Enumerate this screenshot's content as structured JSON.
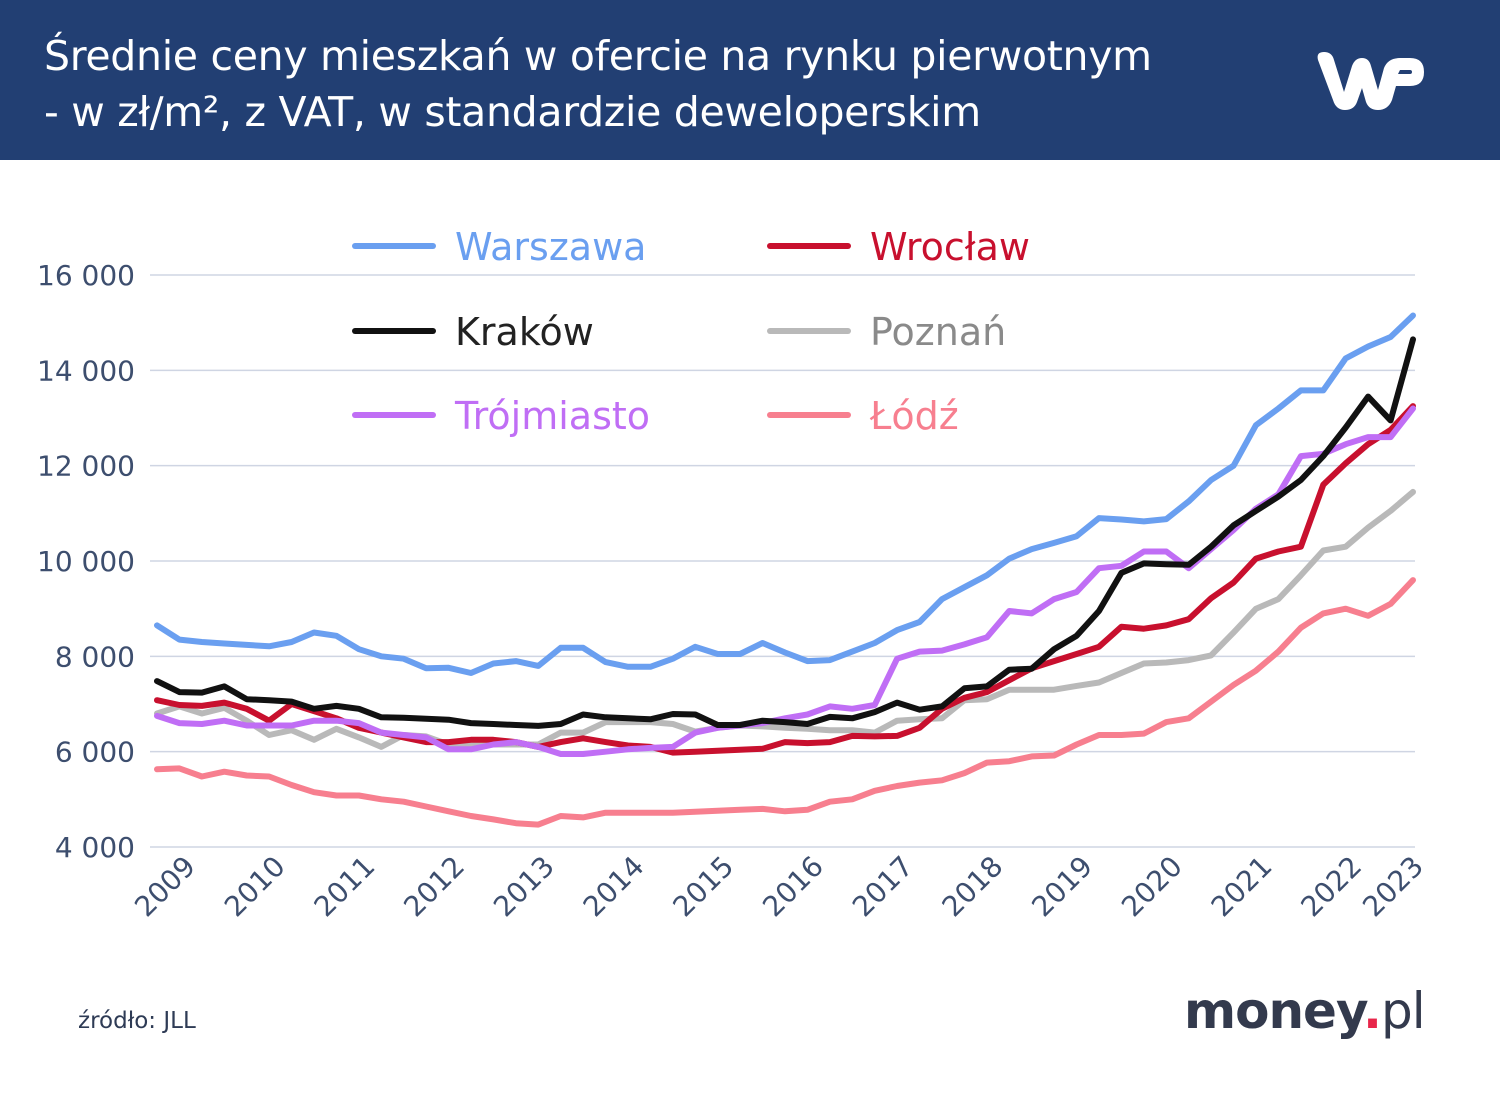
{
  "header": {
    "title_line1": "Średnie ceny mieszkań w ofercie na rynku pierwotnym",
    "title_line2": "- w zł/m², z VAT, w standardzie deweloperskim",
    "logo": "WP",
    "background": "#223f73"
  },
  "footer": {
    "source": "źródło: JLL",
    "brand_name": "money",
    "brand_dot": ".",
    "brand_tld": "pl"
  },
  "chart_data": {
    "type": "line",
    "title": "Średnie ceny mieszkań w ofercie na rynku pierwotnym - w zł/m², z VAT, w standardzie deweloperskim",
    "xlabel": "",
    "ylabel": "",
    "x_frequency": "quarterly",
    "x_range": [
      "2009 Q1",
      "2023 Q1"
    ],
    "x_tick_labels": [
      "2009",
      "2010",
      "2011",
      "2012",
      "2013",
      "2014",
      "2015",
      "2016",
      "2017",
      "2018",
      "2019",
      "2020",
      "2021",
      "2022",
      "2023"
    ],
    "y_ticks": [
      4000,
      6000,
      8000,
      10000,
      12000,
      14000,
      16000
    ],
    "y_tick_labels": [
      "4 000",
      "6 000",
      "8 000",
      "10 000",
      "12 000",
      "14 000",
      "16 000"
    ],
    "ylim": [
      4000,
      16000
    ],
    "grid": "horizontal",
    "legend_placement": "top",
    "series": [
      {
        "name": "Warszawa",
        "color": "#6a9ff0",
        "values": [
          8650,
          8350,
          8300,
          8270,
          8240,
          8210,
          8300,
          8500,
          8430,
          8150,
          8000,
          7950,
          7750,
          7760,
          7650,
          7850,
          7900,
          7800,
          8180,
          8180,
          7880,
          7780,
          7780,
          7950,
          8200,
          8050,
          8050,
          8280,
          8080,
          7900,
          7920,
          8100,
          8280,
          8550,
          8720,
          9200,
          9450,
          9700,
          10050,
          10250,
          10380,
          10520,
          10900,
          10870,
          10830,
          10880,
          11250,
          11700,
          12000,
          12850,
          13200,
          13580,
          13580,
          14250,
          14500,
          14700,
          15150
        ]
      },
      {
        "name": "Wrocław",
        "color": "#c8102e",
        "values": [
          7080,
          6980,
          6960,
          7030,
          6900,
          6650,
          7000,
          6850,
          6700,
          6500,
          6400,
          6300,
          6200,
          6200,
          6250,
          6250,
          6200,
          6100,
          6200,
          6280,
          6200,
          6130,
          6100,
          5980,
          6000,
          6020,
          6040,
          6060,
          6200,
          6180,
          6200,
          6330,
          6320,
          6330,
          6500,
          6900,
          7130,
          7250,
          7500,
          7750,
          7900,
          8050,
          8200,
          8620,
          8580,
          8650,
          8780,
          9220,
          9550,
          10050,
          10200,
          10300,
          11600,
          12050,
          12450,
          12750,
          13250
        ]
      },
      {
        "name": "Kraków",
        "color": "#111111",
        "values": [
          7480,
          7250,
          7240,
          7370,
          7100,
          7080,
          7050,
          6900,
          6960,
          6900,
          6720,
          6710,
          6690,
          6670,
          6600,
          6580,
          6560,
          6540,
          6580,
          6780,
          6720,
          6700,
          6680,
          6790,
          6780,
          6560,
          6560,
          6650,
          6620,
          6580,
          6730,
          6700,
          6830,
          7030,
          6880,
          6950,
          7330,
          7370,
          7720,
          7740,
          8150,
          8430,
          8950,
          9750,
          9950,
          9930,
          9920,
          10300,
          10750,
          11050,
          11350,
          11700,
          12200,
          12800,
          13450,
          12950,
          14650
        ]
      },
      {
        "name": "Poznań",
        "color": "#b9b9b9",
        "values": [
          6800,
          6950,
          6800,
          6920,
          6650,
          6350,
          6450,
          6250,
          6480,
          6300,
          6100,
          6350,
          6320,
          6150,
          6150,
          6150,
          6150,
          6150,
          6400,
          6400,
          6620,
          6620,
          6620,
          6580,
          6420,
          6500,
          6550,
          6530,
          6500,
          6480,
          6450,
          6450,
          6400,
          6650,
          6680,
          6700,
          7080,
          7100,
          7300,
          7300,
          7300,
          7380,
          7450,
          7650,
          7850,
          7870,
          7920,
          8020,
          8500,
          9000,
          9200,
          9700,
          10220,
          10300,
          10700,
          11050,
          11450
        ]
      },
      {
        "name": "Trójmiasto",
        "color": "#c06ef5",
        "values": [
          6750,
          6600,
          6580,
          6650,
          6550,
          6550,
          6550,
          6650,
          6650,
          6600,
          6400,
          6350,
          6300,
          6050,
          6050,
          6150,
          6200,
          6100,
          5950,
          5950,
          6000,
          6050,
          6080,
          6100,
          6400,
          6500,
          6550,
          6600,
          6700,
          6780,
          6950,
          6900,
          6980,
          7950,
          8100,
          8120,
          8250,
          8400,
          8950,
          8900,
          9200,
          9350,
          9850,
          9900,
          10200,
          10200,
          9850,
          10250,
          10650,
          11100,
          11400,
          12200,
          12250,
          12450,
          12600,
          12600,
          13200
        ]
      },
      {
        "name": "Łódź",
        "color": "#f77f8f",
        "values": [
          5630,
          5650,
          5480,
          5580,
          5500,
          5480,
          5300,
          5150,
          5080,
          5080,
          5000,
          4950,
          4850,
          4750,
          4650,
          4580,
          4500,
          4470,
          4650,
          4620,
          4720,
          4720,
          4720,
          4720,
          4740,
          4760,
          4780,
          4800,
          4750,
          4780,
          4950,
          5000,
          5180,
          5280,
          5350,
          5400,
          5550,
          5770,
          5800,
          5900,
          5920,
          6150,
          6350,
          6350,
          6380,
          6620,
          6700,
          7050,
          7400,
          7700,
          8100,
          8600,
          8900,
          9000,
          8850,
          9100,
          9600
        ]
      }
    ],
    "legend_text_colors": {
      "Warszawa": "#6a9ff0",
      "Wrocław": "#c8102e",
      "Kraków": "#222222",
      "Poznań": "#8a8a8a",
      "Trójmiasto": "#c06ef5",
      "Łódź": "#f77f8f"
    }
  }
}
